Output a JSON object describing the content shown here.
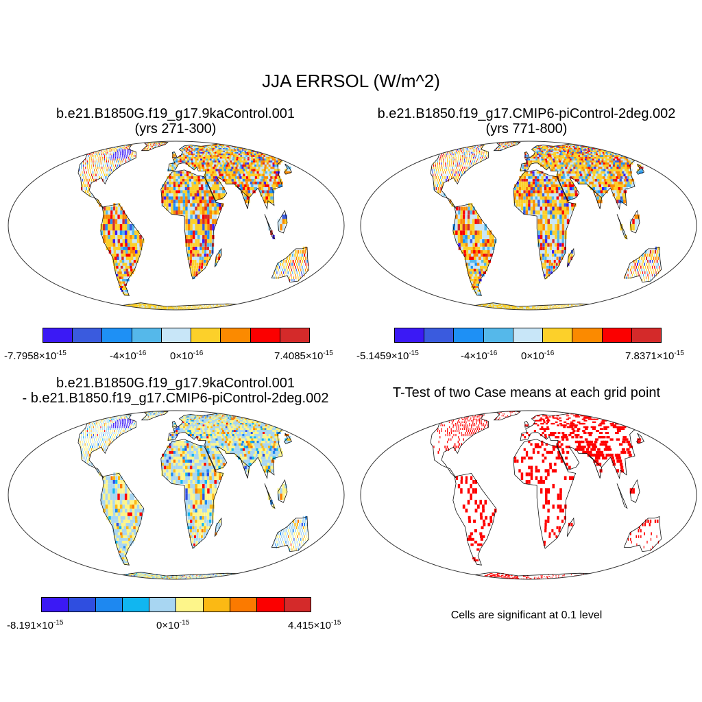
{
  "figure": {
    "title": "JJA ERRSOL (W/m^2)",
    "panels": [
      {
        "id": "case1",
        "title_lines": [
          "b.e21.B1850G.f19_g17.9kaControl.001",
          "(yrs 271-300)"
        ],
        "colorbar": {
          "colors": [
            "#3b19f5",
            "#3a5bde",
            "#1e90f5",
            "#55b8ea",
            "#c8e6f8",
            "#fcd02a",
            "#fb8a00",
            "#fb0000",
            "#d42a2a"
          ],
          "ticks": [
            {
              "mant": "-7.7958×10",
              "exp": "-15"
            },
            {
              "mant": "-4×10",
              "exp": "-16"
            },
            {
              "mant": "0×10",
              "exp": "-16"
            },
            {
              "mant": "7.4085×10",
              "exp": "-15"
            }
          ]
        }
      },
      {
        "id": "case2",
        "title_lines": [
          "b.e21.B1850.f19_g17.CMIP6-piControl-2deg.002",
          "(yrs 771-800)"
        ],
        "colorbar": {
          "colors": [
            "#3b19f5",
            "#3a5bde",
            "#1e90f5",
            "#55b8ea",
            "#c8e6f8",
            "#fcd02a",
            "#fb8a00",
            "#fb0000",
            "#d42a2a"
          ],
          "ticks": [
            {
              "mant": "-5.1459×10",
              "exp": "-15"
            },
            {
              "mant": "-4×10",
              "exp": "-16"
            },
            {
              "mant": "0×10",
              "exp": "-16"
            },
            {
              "mant": "7.8371×10",
              "exp": "-15"
            }
          ]
        }
      },
      {
        "id": "diff",
        "title_lines": [
          "b.e21.B1850G.f19_g17.9kaControl.001",
          "- b.e21.B1850.f19_g17.CMIP6-piControl-2deg.002"
        ],
        "colorbar": {
          "colors": [
            "#3b19f5",
            "#2f4ee0",
            "#1e88f0",
            "#11b6f0",
            "#a8d6f2",
            "#fdf58a",
            "#fbb914",
            "#fb7a00",
            "#fb0000",
            "#d42a2a"
          ],
          "ticks": [
            {
              "mant": "-8.191×10",
              "exp": "-15"
            },
            {
              "mant": "0×10",
              "exp": "-15"
            },
            {
              "mant": "4.415×10",
              "exp": "-15"
            }
          ]
        }
      },
      {
        "id": "ttest",
        "title_lines": [
          "T-Test of two Case means at each grid point"
        ],
        "note": "Cells are significant at 0.1 level",
        "sig_color": "#ff0000"
      }
    ]
  }
}
